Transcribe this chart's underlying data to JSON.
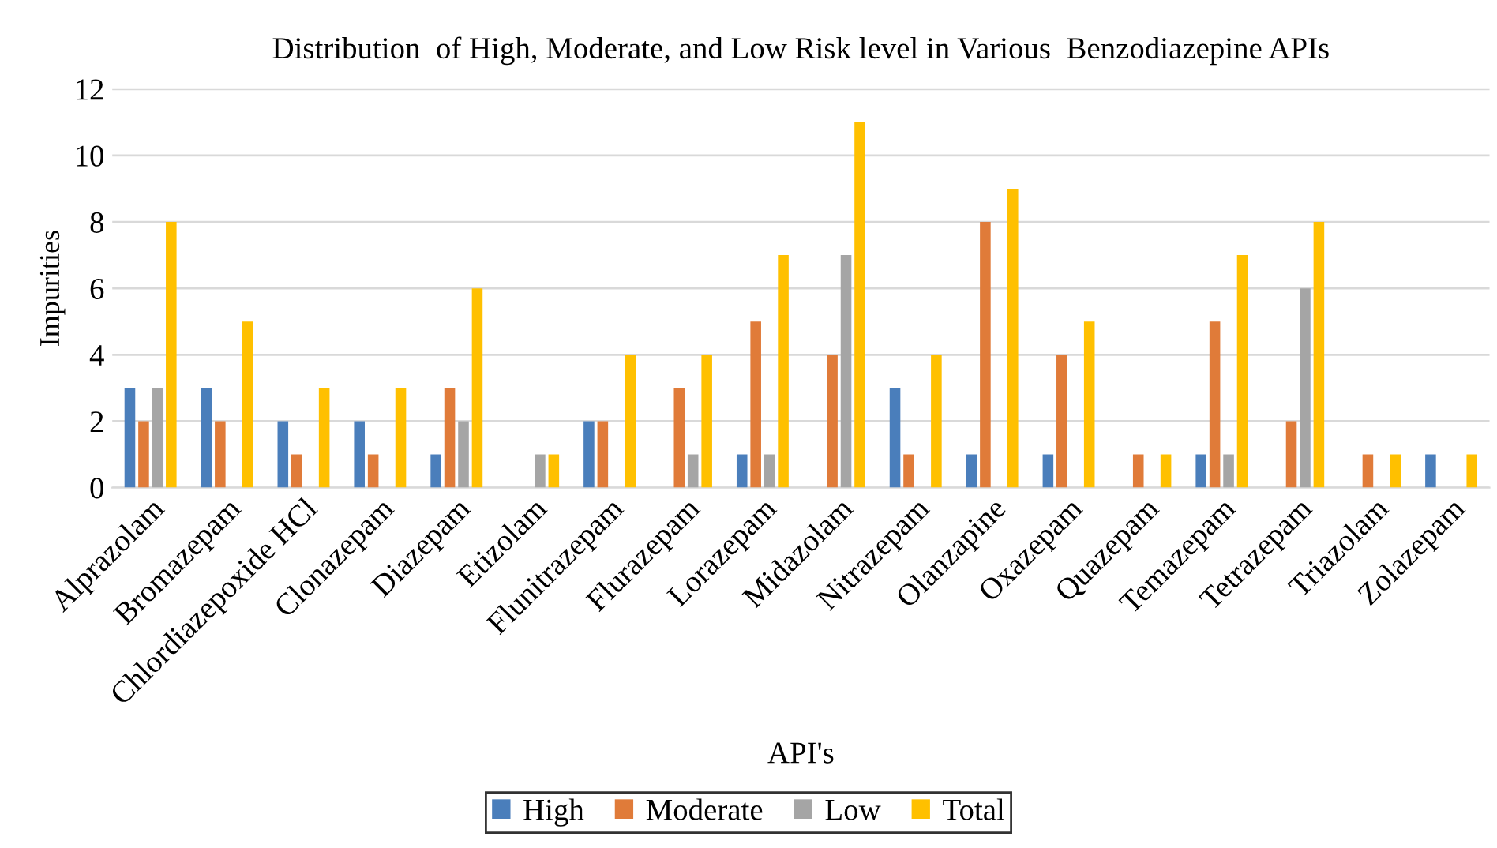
{
  "chart_data": {
    "type": "bar",
    "title": "Distribution  of High, Moderate, and Low Risk level in Various  Benzodiazepine APIs",
    "xlabel": "API's",
    "ylabel": "Impurities",
    "categories": [
      "Alprazolam",
      "Bromazepam",
      "Chlordiazepoxide HCl",
      "Clonazepam",
      "Diazepam",
      "Etizolam",
      "Flunitrazepam",
      "Flurazepam",
      "Lorazepam",
      "Midazolam",
      "Nitrazepam",
      "Olanzapine",
      "Oxazepam",
      "Quazepam",
      "Temazepam",
      "Tetrazepam",
      "Triazolam",
      "Zolazepam"
    ],
    "series": [
      {
        "name": "High",
        "color": "#4a7ebb",
        "values": [
          3,
          3,
          2,
          2,
          1,
          null,
          2,
          null,
          1,
          null,
          3,
          1,
          1,
          null,
          1,
          null,
          null,
          1
        ]
      },
      {
        "name": "Moderate",
        "color": "#e07b39",
        "values": [
          2,
          2,
          1,
          1,
          3,
          null,
          2,
          3,
          5,
          4,
          1,
          8,
          4,
          1,
          5,
          2,
          1,
          null
        ]
      },
      {
        "name": "Low",
        "color": "#a5a5a5",
        "values": [
          3,
          null,
          null,
          null,
          2,
          1,
          null,
          1,
          1,
          7,
          null,
          null,
          null,
          null,
          1,
          6,
          null,
          null
        ]
      },
      {
        "name": "Total",
        "color": "#ffc000",
        "values": [
          8,
          5,
          3,
          3,
          6,
          1,
          4,
          4,
          7,
          11,
          4,
          9,
          5,
          1,
          7,
          8,
          1,
          1
        ]
      }
    ],
    "ylim": [
      0,
      12
    ],
    "yticks": [
      0,
      2,
      4,
      6,
      8,
      10,
      12
    ],
    "grid": "y",
    "legend": "bottom"
  }
}
